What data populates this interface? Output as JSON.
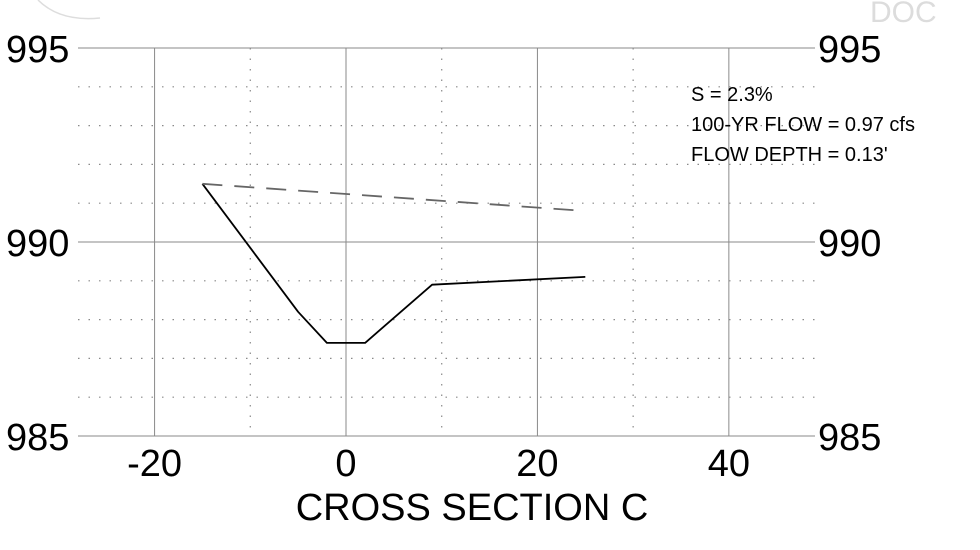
{
  "chart_data": {
    "type": "line",
    "xlabel": "CROSS SECTION C",
    "ylabel": "",
    "xlim": [
      -28,
      49
    ],
    "ylim": [
      985,
      995
    ],
    "xticks": [
      -20,
      0,
      20,
      40
    ],
    "yticks": [
      985,
      990,
      995
    ],
    "xtick_labels": [
      "-20",
      "0",
      "20",
      "40"
    ],
    "ytick_labels": [
      "985",
      "990",
      "995"
    ],
    "grid": "major solid, minor dotted",
    "series": [
      {
        "style": "solid",
        "color": "#000000",
        "x": [
          -15,
          -5,
          -2,
          2,
          9,
          25
        ],
        "y": [
          991.5,
          988.2,
          987.4,
          987.4,
          988.9,
          989.1
        ]
      },
      {
        "style": "dashed",
        "color": "#666666",
        "x": [
          -15,
          25
        ],
        "y": [
          991.5,
          990.8
        ]
      }
    ],
    "annotations": [
      "S = 2.3%",
      "100-YR FLOW = 0.97 cfs",
      "FLOW DEPTH = 0.13'"
    ]
  },
  "corner_text": "DOC"
}
